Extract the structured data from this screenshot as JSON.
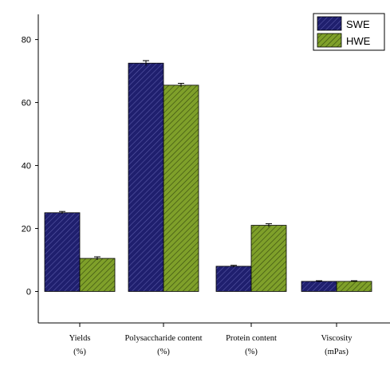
{
  "chart_data": {
    "type": "bar",
    "categories": [
      {
        "line1": "Yields",
        "line2": "(%)"
      },
      {
        "line1": "Polysaccharide content",
        "line2": "(%)"
      },
      {
        "line1": "Protein content",
        "line2": "(%)"
      },
      {
        "line1": "Viscosity",
        "line2": "(mPas)"
      }
    ],
    "series": [
      {
        "name": "SWE",
        "color": "#1f1f6e",
        "values": [
          25,
          72.5,
          8,
          3.2
        ],
        "errors": [
          0.4,
          0.8,
          0.3,
          0.2
        ]
      },
      {
        "name": "HWE",
        "color": "#6b8c1f",
        "values": [
          10.5,
          65.5,
          21,
          3.2
        ],
        "errors": [
          0.5,
          0.6,
          0.5,
          0.2
        ]
      }
    ],
    "yticks": [
      0,
      20,
      40,
      60,
      80
    ],
    "ylim": [
      -10,
      88
    ],
    "grid": false,
    "legend_position": "top-right",
    "title": "",
    "xlabel": "",
    "ylabel": ""
  }
}
